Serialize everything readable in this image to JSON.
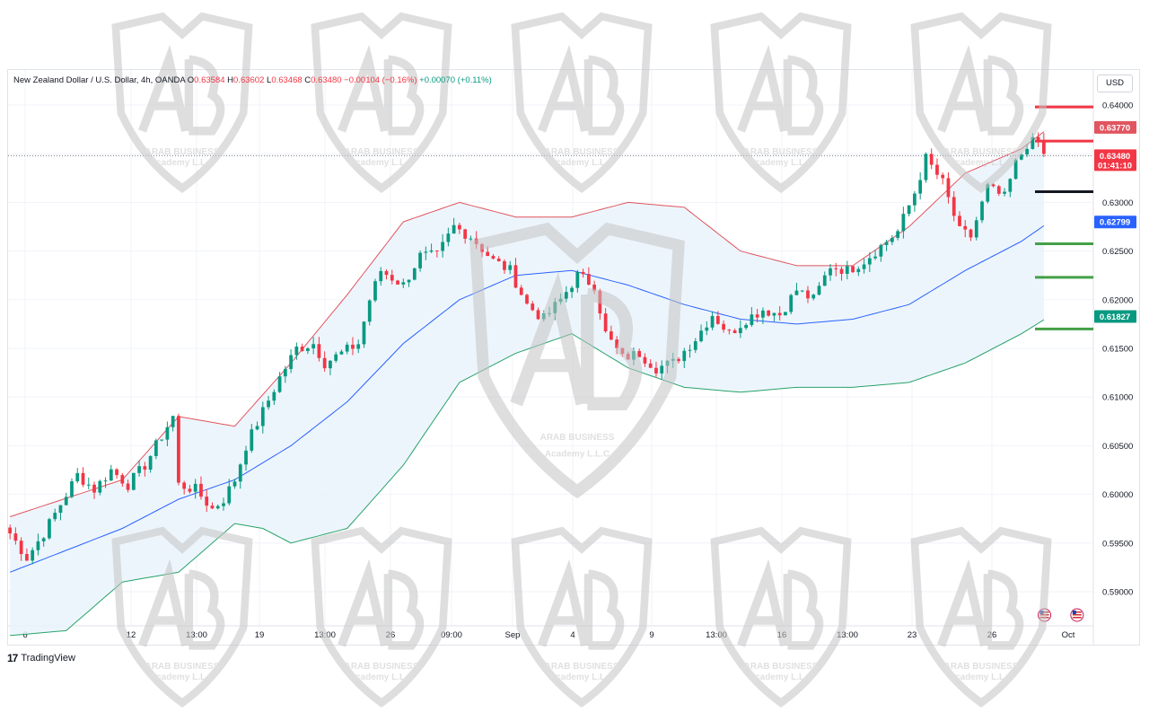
{
  "legend": {
    "symbol": "New Zealand Dollar / U.S. Dollar, 4h, OANDA",
    "o_label": "O",
    "o_value": "0.63584",
    "h_label": "H",
    "h_value": "0.63602",
    "l_label": "L",
    "l_value": "0.63468",
    "c_label": "C",
    "c_value": "0.63480",
    "change": "−0.00104 (−0.16%)",
    "extra_change": "+0.00070 (+0.11%)"
  },
  "currency": "USD",
  "footer": {
    "brand": "TradingView",
    "logo": "tradingview-logo-icon"
  },
  "watermark": {
    "line1": "ARAB BUSINESS",
    "line2": "Academy L.L.C",
    "icon": "ab-shield-icon"
  },
  "colors": {
    "up": "#089981",
    "down": "#f23645",
    "upper_band": "#e0555f",
    "basis": "#2962ff",
    "lower_band": "#26a269",
    "band_fill": "#e8f2fb",
    "support_line": "#43a047",
    "level_black": "#131722"
  },
  "price_badges": [
    {
      "name": "badge-upper-band",
      "value": "0.63770",
      "color": "#e0555f",
      "price": 0.6377
    },
    {
      "name": "badge-last-price",
      "value": "0.63480",
      "sub": "01:41:10",
      "color": "#f23645",
      "price": 0.6348
    },
    {
      "name": "badge-basis",
      "value": "0.62799",
      "color": "#2962ff",
      "price": 0.62799
    },
    {
      "name": "badge-lower-band",
      "value": "0.61827",
      "color": "#089981",
      "price": 0.61827
    }
  ],
  "chart_data": {
    "type": "candlestick",
    "title": "New Zealand Dollar / U.S. Dollar, 4h, OANDA",
    "ylim": [
      0.5875,
      0.6425
    ],
    "y_ticks": [
      "0.64000",
      "0.63500",
      "0.63000",
      "0.62500",
      "0.62000",
      "0.61500",
      "0.61000",
      "0.60500",
      "0.60000",
      "0.59500",
      "0.59000"
    ],
    "x_ticks": [
      "6",
      "12",
      "13:00",
      "19",
      "13:00",
      "26",
      "09:00",
      "Sep",
      "4",
      "9",
      "13:00",
      "16",
      "13:00",
      "23",
      "26",
      "Oct"
    ],
    "grid": true,
    "indicator": "Bollinger Bands",
    "keypoints": [
      {
        "x": 0,
        "p": 0.596
      },
      {
        "x": 3,
        "p": 0.5935
      },
      {
        "x": 6,
        "p": 0.596
      },
      {
        "x": 9,
        "p": 0.599
      },
      {
        "x": 12,
        "p": 0.602
      },
      {
        "x": 15,
        "p": 0.6005
      },
      {
        "x": 18,
        "p": 0.6025
      },
      {
        "x": 21,
        "p": 0.601
      },
      {
        "x": 24,
        "p": 0.603
      },
      {
        "x": 27,
        "p": 0.606
      },
      {
        "x": 29,
        "p": 0.608
      },
      {
        "x": 30,
        "p": 0.601
      },
      {
        "x": 33,
        "p": 0.6005
      },
      {
        "x": 36,
        "p": 0.5985
      },
      {
        "x": 38,
        "p": 0.5995
      },
      {
        "x": 40,
        "p": 0.6015
      },
      {
        "x": 42,
        "p": 0.605
      },
      {
        "x": 45,
        "p": 0.6085
      },
      {
        "x": 48,
        "p": 0.612
      },
      {
        "x": 51,
        "p": 0.615
      },
      {
        "x": 54,
        "p": 0.6155
      },
      {
        "x": 56,
        "p": 0.6135
      },
      {
        "x": 59,
        "p": 0.6145
      },
      {
        "x": 62,
        "p": 0.6155
      },
      {
        "x": 64,
        "p": 0.62
      },
      {
        "x": 66,
        "p": 0.623
      },
      {
        "x": 70,
        "p": 0.6215
      },
      {
        "x": 73,
        "p": 0.6245
      },
      {
        "x": 76,
        "p": 0.6245
      },
      {
        "x": 79,
        "p": 0.6275
      },
      {
        "x": 82,
        "p": 0.6265
      },
      {
        "x": 86,
        "p": 0.624
      },
      {
        "x": 89,
        "p": 0.623
      },
      {
        "x": 92,
        "p": 0.6195
      },
      {
        "x": 95,
        "p": 0.618
      },
      {
        "x": 98,
        "p": 0.62
      },
      {
        "x": 101,
        "p": 0.6225
      },
      {
        "x": 104,
        "p": 0.6215
      },
      {
        "x": 106,
        "p": 0.6165
      },
      {
        "x": 109,
        "p": 0.614
      },
      {
        "x": 112,
        "p": 0.6145
      },
      {
        "x": 115,
        "p": 0.613
      },
      {
        "x": 118,
        "p": 0.6135
      },
      {
        "x": 122,
        "p": 0.616
      },
      {
        "x": 125,
        "p": 0.6185
      },
      {
        "x": 128,
        "p": 0.6165
      },
      {
        "x": 131,
        "p": 0.618
      },
      {
        "x": 134,
        "p": 0.619
      },
      {
        "x": 137,
        "p": 0.6185
      },
      {
        "x": 140,
        "p": 0.621
      },
      {
        "x": 143,
        "p": 0.62
      },
      {
        "x": 146,
        "p": 0.6235
      },
      {
        "x": 149,
        "p": 0.623
      },
      {
        "x": 152,
        "p": 0.624
      },
      {
        "x": 155,
        "p": 0.6255
      },
      {
        "x": 158,
        "p": 0.627
      },
      {
        "x": 161,
        "p": 0.631
      },
      {
        "x": 163,
        "p": 0.6345
      },
      {
        "x": 166,
        "p": 0.632
      },
      {
        "x": 169,
        "p": 0.627
      },
      {
        "x": 171,
        "p": 0.6265
      },
      {
        "x": 174,
        "p": 0.6315
      },
      {
        "x": 177,
        "p": 0.6305
      },
      {
        "x": 179,
        "p": 0.634
      },
      {
        "x": 181,
        "p": 0.636
      },
      {
        "x": 183,
        "p": 0.6363
      },
      {
        "x": 184,
        "p": 0.6348
      }
    ],
    "upper_band": [
      {
        "x": 0,
        "p": 0.5977
      },
      {
        "x": 20,
        "p": 0.6015
      },
      {
        "x": 30,
        "p": 0.608
      },
      {
        "x": 40,
        "p": 0.607
      },
      {
        "x": 50,
        "p": 0.6135
      },
      {
        "x": 60,
        "p": 0.6205
      },
      {
        "x": 70,
        "p": 0.628
      },
      {
        "x": 80,
        "p": 0.63
      },
      {
        "x": 90,
        "p": 0.6285
      },
      {
        "x": 100,
        "p": 0.6285
      },
      {
        "x": 110,
        "p": 0.63
      },
      {
        "x": 120,
        "p": 0.6295
      },
      {
        "x": 130,
        "p": 0.625
      },
      {
        "x": 140,
        "p": 0.6235
      },
      {
        "x": 150,
        "p": 0.6235
      },
      {
        "x": 160,
        "p": 0.6275
      },
      {
        "x": 170,
        "p": 0.633
      },
      {
        "x": 180,
        "p": 0.6355
      },
      {
        "x": 185,
        "p": 0.6377
      }
    ],
    "basis": [
      {
        "x": 0,
        "p": 0.592
      },
      {
        "x": 20,
        "p": 0.5965
      },
      {
        "x": 30,
        "p": 0.5995
      },
      {
        "x": 40,
        "p": 0.6015
      },
      {
        "x": 50,
        "p": 0.605
      },
      {
        "x": 60,
        "p": 0.6095
      },
      {
        "x": 70,
        "p": 0.6155
      },
      {
        "x": 80,
        "p": 0.62
      },
      {
        "x": 90,
        "p": 0.6225
      },
      {
        "x": 100,
        "p": 0.623
      },
      {
        "x": 110,
        "p": 0.6215
      },
      {
        "x": 120,
        "p": 0.6195
      },
      {
        "x": 130,
        "p": 0.618
      },
      {
        "x": 140,
        "p": 0.6175
      },
      {
        "x": 150,
        "p": 0.618
      },
      {
        "x": 160,
        "p": 0.6195
      },
      {
        "x": 170,
        "p": 0.623
      },
      {
        "x": 180,
        "p": 0.626
      },
      {
        "x": 185,
        "p": 0.628
      }
    ],
    "lower_band": [
      {
        "x": 0,
        "p": 0.5855
      },
      {
        "x": 10,
        "p": 0.586
      },
      {
        "x": 20,
        "p": 0.591
      },
      {
        "x": 30,
        "p": 0.592
      },
      {
        "x": 40,
        "p": 0.597
      },
      {
        "x": 45,
        "p": 0.5965
      },
      {
        "x": 50,
        "p": 0.595
      },
      {
        "x": 60,
        "p": 0.5965
      },
      {
        "x": 70,
        "p": 0.603
      },
      {
        "x": 80,
        "p": 0.6115
      },
      {
        "x": 90,
        "p": 0.6145
      },
      {
        "x": 100,
        "p": 0.6165
      },
      {
        "x": 110,
        "p": 0.613
      },
      {
        "x": 120,
        "p": 0.611
      },
      {
        "x": 130,
        "p": 0.6105
      },
      {
        "x": 140,
        "p": 0.611
      },
      {
        "x": 150,
        "p": 0.611
      },
      {
        "x": 160,
        "p": 0.6115
      },
      {
        "x": 170,
        "p": 0.6135
      },
      {
        "x": 180,
        "p": 0.6165
      },
      {
        "x": 185,
        "p": 0.6183
      }
    ]
  },
  "levels": [
    {
      "name": "resistance-level-1",
      "price": 0.6398,
      "color": "#f23645"
    },
    {
      "name": "resistance-level-2",
      "price": 0.6363,
      "color": "#f23645"
    },
    {
      "name": "pivot-level",
      "price": 0.6311,
      "color": "#131722"
    },
    {
      "name": "support-level-1",
      "price": 0.62575,
      "color": "#43a047"
    },
    {
      "name": "support-level-2",
      "price": 0.6223,
      "color": "#43a047"
    },
    {
      "name": "support-level-3",
      "price": 0.617,
      "color": "#43a047"
    }
  ],
  "event_icons": [
    {
      "name": "event-icon-1",
      "kind": "flag-us-icon",
      "pos": 0.955
    },
    {
      "name": "event-icon-2",
      "kind": "flag-us-icon",
      "pos": 0.985
    }
  ]
}
